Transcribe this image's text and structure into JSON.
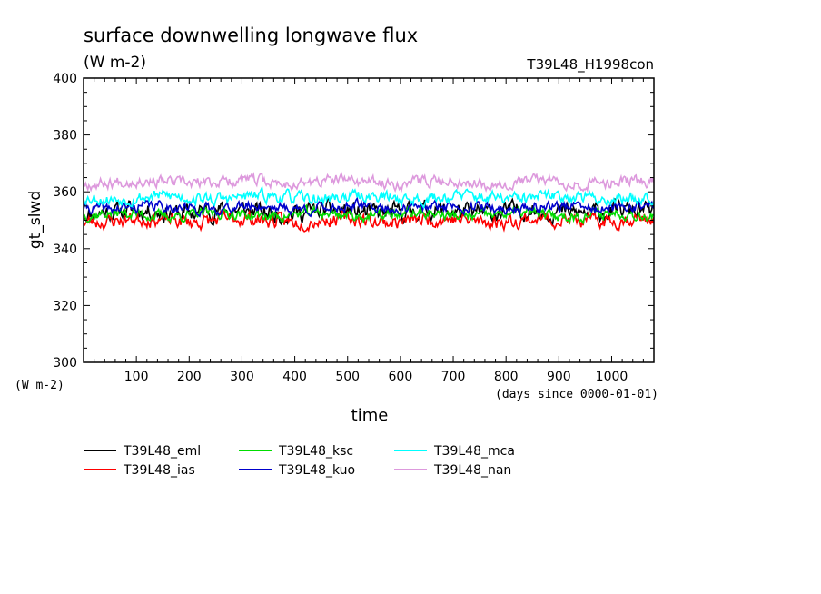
{
  "chart_data": {
    "type": "line",
    "title": "surface downwelling longwave flux",
    "units_label": "(W m-2)",
    "run_label": "T39L48_H1998con",
    "ylabel": "gt_slwd",
    "xlabel": "time",
    "x_units": "(days since 0000-01-01)",
    "y_units_bottom": "(W m-2)",
    "xlim": [
      0,
      1080
    ],
    "ylim": [
      300,
      400
    ],
    "x_ticks": [
      100,
      200,
      300,
      400,
      500,
      600,
      700,
      800,
      900,
      1000
    ],
    "y_ticks": [
      300,
      320,
      340,
      360,
      380,
      400
    ],
    "series": [
      {
        "name": "T39L48_eml",
        "color": "#000000",
        "mean": 353,
        "amp": 2.5,
        "seed": 11
      },
      {
        "name": "T39L48_ias",
        "color": "#ff0000",
        "mean": 350,
        "amp": 2.0,
        "seed": 23
      },
      {
        "name": "T39L48_ksc",
        "color": "#00dd00",
        "mean": 352,
        "amp": 1.5,
        "seed": 37
      },
      {
        "name": "T39L48_kuo",
        "color": "#0000cc",
        "mean": 354.5,
        "amp": 1.5,
        "seed": 41
      },
      {
        "name": "T39L48_mca",
        "color": "#00ffff",
        "mean": 358,
        "amp": 1.7,
        "seed": 53
      },
      {
        "name": "T39L48_nan",
        "color": "#dd99dd",
        "mean": 363.5,
        "amp": 1.6,
        "seed": 67
      }
    ]
  }
}
